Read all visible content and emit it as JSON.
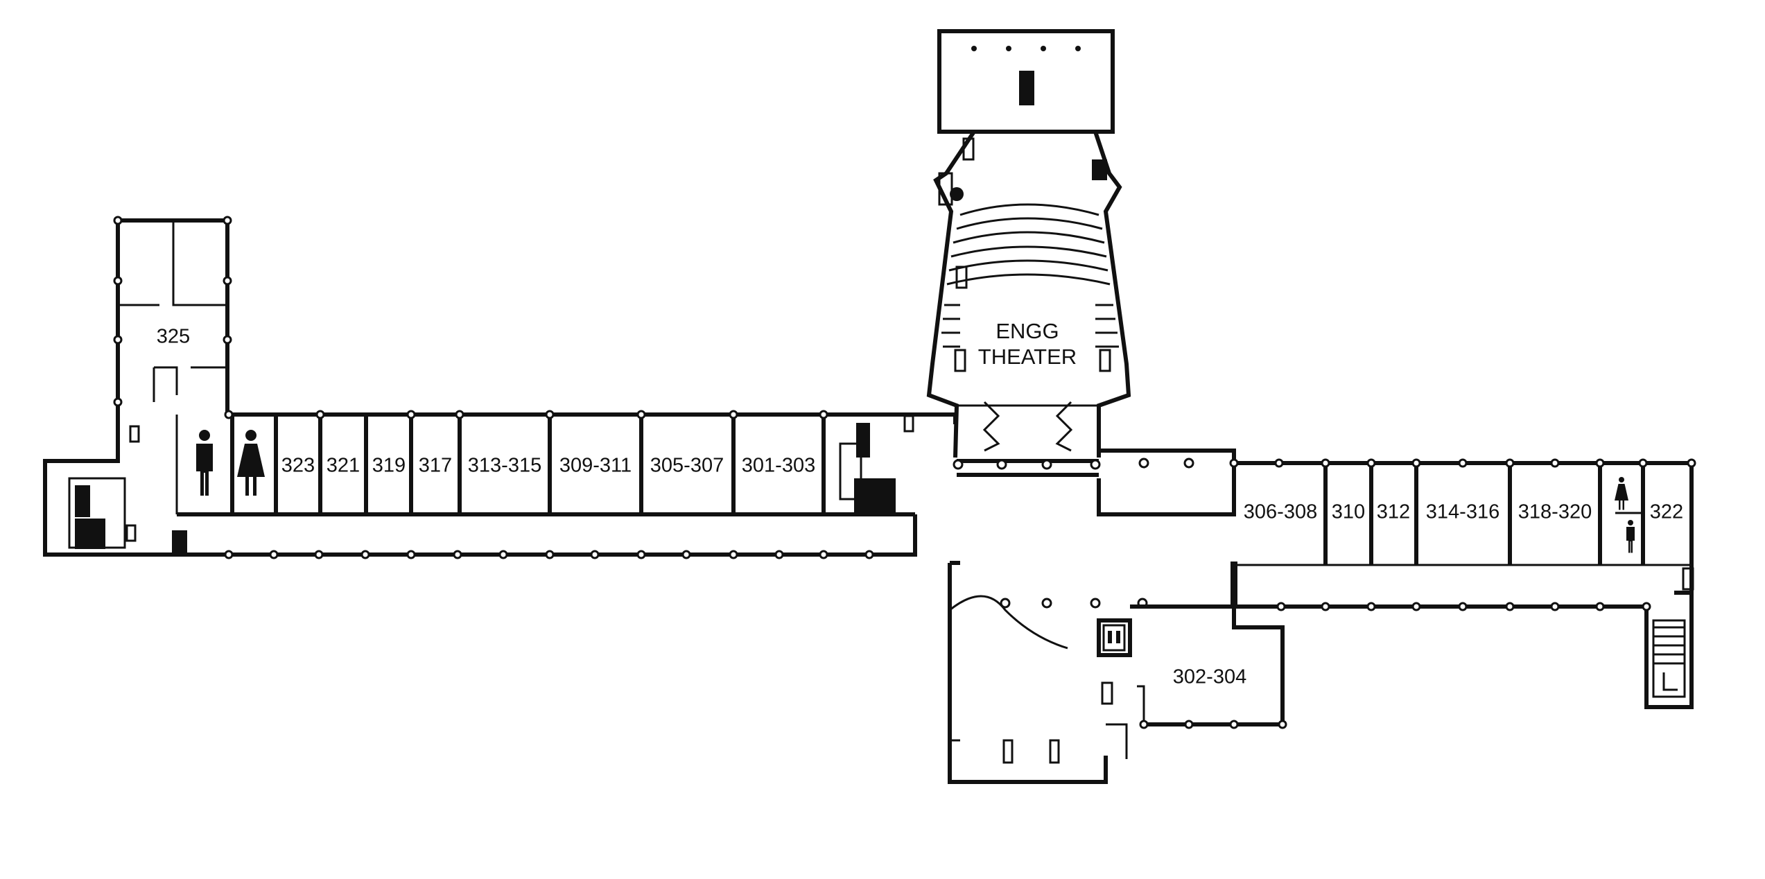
{
  "floor": {
    "rooms": [
      {
        "id": "325",
        "label": "325"
      },
      {
        "id": "323",
        "label": "323"
      },
      {
        "id": "321",
        "label": "321"
      },
      {
        "id": "319",
        "label": "319"
      },
      {
        "id": "317",
        "label": "317"
      },
      {
        "id": "313-315",
        "label": "313-315"
      },
      {
        "id": "309-311",
        "label": "309-311"
      },
      {
        "id": "305-307",
        "label": "305-307"
      },
      {
        "id": "301-303",
        "label": "301-303"
      },
      {
        "id": "306-308",
        "label": "306-308"
      },
      {
        "id": "310",
        "label": "310"
      },
      {
        "id": "312",
        "label": "312"
      },
      {
        "id": "314-316",
        "label": "314-316"
      },
      {
        "id": "318-320",
        "label": "318-320"
      },
      {
        "id": "322",
        "label": "322"
      },
      {
        "id": "302-304",
        "label": "302-304"
      }
    ],
    "theater": {
      "line1": "ENGG",
      "line2": "THEATER"
    },
    "icons": [
      "mens-restroom-icon",
      "womens-restroom-icon",
      "elevator-icon",
      "stairs-icon",
      "fire-extinguisher-icon"
    ]
  }
}
